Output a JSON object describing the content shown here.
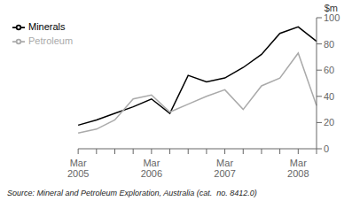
{
  "chart_data": {
    "type": "line",
    "ylabel": "$m",
    "annotations": [
      "Source: Mineral and Petroleum Exploration, Australia (cat.  no. 8412.0)"
    ],
    "categories": [
      "Mar\n2005",
      null,
      null,
      null,
      "Mar\n2006",
      null,
      null,
      null,
      "Mar\n2007",
      null,
      null,
      null,
      "Mar\n2008",
      null
    ],
    "series": [
      {
        "name": "Minerals",
        "color": "#000000",
        "values": [
          18,
          22,
          27,
          32,
          38,
          27,
          56,
          51,
          54,
          62,
          72,
          88,
          93,
          82
        ]
      },
      {
        "name": "Petroleum",
        "color": "#aaaaaa",
        "values": [
          12,
          15,
          22,
          38,
          41,
          28,
          34,
          40,
          45,
          30,
          48,
          54,
          73,
          33
        ]
      }
    ],
    "ylim": [
      0,
      100
    ],
    "yticks": [
      0,
      20,
      40,
      60,
      80,
      100
    ],
    "grid": false,
    "legend": "upper left"
  }
}
